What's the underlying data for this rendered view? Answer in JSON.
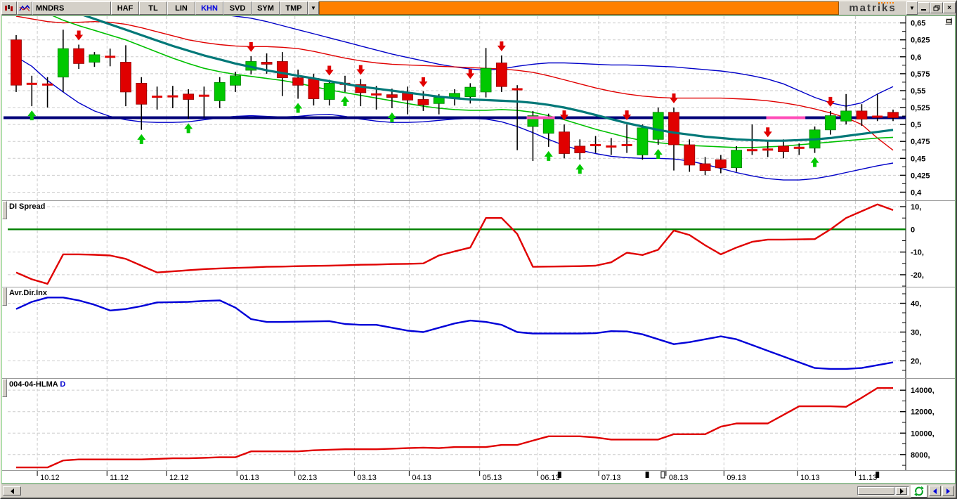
{
  "titlebar": {
    "tabs": [
      {
        "label": "MNDRS"
      },
      {
        "label": "HAF"
      },
      {
        "label": "TL"
      },
      {
        "label": "LIN"
      },
      {
        "label": "KHN"
      },
      {
        "label": "SVD"
      },
      {
        "label": "SYM"
      },
      {
        "label": "TMP"
      }
    ],
    "khn_color": "#0000e0",
    "accent_orange": "#ff8000",
    "logo": "matriks"
  },
  "chart_data": [
    {
      "type": "candlestick",
      "panel": "price",
      "ylim": [
        0.388,
        0.66
      ],
      "yaxis": {
        "values": [
          0.65,
          0.625,
          0.6,
          0.575,
          0.55,
          0.525,
          0.5,
          0.475,
          0.45,
          0.425,
          0.4
        ],
        "labels": [
          "0,65",
          "0,625",
          "0,6",
          "0,575",
          "0,55",
          "0,525",
          "0,5",
          "0,475",
          "0,45",
          "0,425",
          "0,4"
        ]
      },
      "colors": {
        "up": "#00c800",
        "down": "#e00000",
        "up_edge": "#008000",
        "down_edge": "#900000",
        "wick": "#000000",
        "teal": "#007878",
        "ema": "#00c000",
        "band_red": "#e00000",
        "band_blue": "#0000c8",
        "magenta": "#ff4db8"
      },
      "candles": [
        [
          0.625,
          0.632,
          0.548,
          0.558
        ],
        [
          0.561,
          0.572,
          0.527,
          0.559
        ],
        [
          0.56,
          0.57,
          0.525,
          0.558
        ],
        [
          0.57,
          0.64,
          0.548,
          0.612
        ],
        [
          0.612,
          0.618,
          0.582,
          0.59
        ],
        [
          0.592,
          0.607,
          0.585,
          0.603
        ],
        [
          0.601,
          0.612,
          0.586,
          0.599
        ],
        [
          0.592,
          0.617,
          0.527,
          0.548
        ],
        [
          0.561,
          0.57,
          0.492,
          0.53
        ],
        [
          0.542,
          0.556,
          0.522,
          0.54
        ],
        [
          0.542,
          0.557,
          0.524,
          0.541
        ],
        [
          0.545,
          0.552,
          0.508,
          0.537
        ],
        [
          0.543,
          0.556,
          0.51,
          0.542
        ],
        [
          0.535,
          0.57,
          0.524,
          0.562
        ],
        [
          0.558,
          0.578,
          0.548,
          0.572
        ],
        [
          0.58,
          0.601,
          0.574,
          0.593
        ],
        [
          0.592,
          0.605,
          0.575,
          0.589
        ],
        [
          0.593,
          0.607,
          0.542,
          0.569
        ],
        [
          0.569,
          0.581,
          0.538,
          0.558
        ],
        [
          0.568,
          0.575,
          0.528,
          0.538
        ],
        [
          0.537,
          0.566,
          0.528,
          0.561
        ],
        [
          0.561,
          0.572,
          0.548,
          0.559
        ],
        [
          0.559,
          0.567,
          0.527,
          0.547
        ],
        [
          0.545,
          0.557,
          0.522,
          0.544
        ],
        [
          0.544,
          0.553,
          0.524,
          0.54
        ],
        [
          0.547,
          0.556,
          0.515,
          0.536
        ],
        [
          0.537,
          0.549,
          0.52,
          0.529
        ],
        [
          0.531,
          0.545,
          0.515,
          0.54
        ],
        [
          0.54,
          0.552,
          0.528,
          0.546
        ],
        [
          0.541,
          0.561,
          0.531,
          0.555
        ],
        [
          0.548,
          0.613,
          0.54,
          0.583
        ],
        [
          0.591,
          0.602,
          0.548,
          0.556
        ],
        [
          0.553,
          0.558,
          0.462,
          0.551
        ],
        [
          0.497,
          0.52,
          0.446,
          0.513
        ],
        [
          0.487,
          0.516,
          0.467,
          0.508
        ],
        [
          0.489,
          0.5,
          0.45,
          0.457
        ],
        [
          0.468,
          0.478,
          0.448,
          0.458
        ],
        [
          0.47,
          0.483,
          0.458,
          0.469
        ],
        [
          0.468,
          0.48,
          0.455,
          0.467
        ],
        [
          0.47,
          0.5,
          0.458,
          0.469
        ],
        [
          0.455,
          0.5,
          0.448,
          0.495
        ],
        [
          0.478,
          0.525,
          0.47,
          0.518
        ],
        [
          0.518,
          0.525,
          0.432,
          0.47
        ],
        [
          0.47,
          0.478,
          0.43,
          0.44
        ],
        [
          0.442,
          0.452,
          0.425,
          0.432
        ],
        [
          0.448,
          0.455,
          0.428,
          0.436
        ],
        [
          0.436,
          0.468,
          0.43,
          0.462
        ],
        [
          0.463,
          0.5,
          0.455,
          0.461
        ],
        [
          0.464,
          0.475,
          0.452,
          0.462
        ],
        [
          0.468,
          0.478,
          0.45,
          0.46
        ],
        [
          0.466,
          0.472,
          0.455,
          0.465
        ],
        [
          0.465,
          0.497,
          0.458,
          0.492
        ],
        [
          0.492,
          0.52,
          0.485,
          0.513
        ],
        [
          0.505,
          0.545,
          0.5,
          0.52
        ],
        [
          0.52,
          0.53,
          0.498,
          0.508
        ],
        [
          0.512,
          0.545,
          0.505,
          0.511
        ],
        [
          0.518,
          0.522,
          0.505,
          0.51
        ]
      ],
      "overlays": {
        "ma_teal": [
          0.7,
          0.691,
          0.682,
          0.673,
          0.664,
          0.656,
          0.648,
          0.64,
          0.632,
          0.624,
          0.616,
          0.609,
          0.602,
          0.596,
          0.59,
          0.585,
          0.58,
          0.576,
          0.572,
          0.568,
          0.564,
          0.56,
          0.556,
          0.553,
          0.55,
          0.547,
          0.544,
          0.541,
          0.539,
          0.537,
          0.536,
          0.535,
          0.534,
          0.532,
          0.529,
          0.525,
          0.52,
          0.514,
          0.508,
          0.502,
          0.497,
          0.492,
          0.488,
          0.485,
          0.482,
          0.48,
          0.478,
          0.477,
          0.476,
          0.476,
          0.477,
          0.478,
          0.48,
          0.483,
          0.486,
          0.489,
          0.492
        ],
        "ema_green": [
          0.688,
          0.676,
          0.664,
          0.654,
          0.646,
          0.639,
          0.632,
          0.625,
          0.616,
          0.607,
          0.598,
          0.59,
          0.583,
          0.578,
          0.574,
          0.571,
          0.568,
          0.565,
          0.561,
          0.556,
          0.551,
          0.547,
          0.543,
          0.539,
          0.535,
          0.531,
          0.527,
          0.524,
          0.522,
          0.521,
          0.521,
          0.522,
          0.521,
          0.518,
          0.513,
          0.507,
          0.5,
          0.493,
          0.487,
          0.481,
          0.476,
          0.473,
          0.471,
          0.469,
          0.468,
          0.467,
          0.466,
          0.466,
          0.467,
          0.468,
          0.47,
          0.472,
          0.474,
          0.476,
          0.478,
          0.48,
          0.481
        ],
        "band_red": [
          0.66,
          0.656,
          0.652,
          0.65,
          0.651,
          0.652,
          0.651,
          0.648,
          0.643,
          0.637,
          0.631,
          0.625,
          0.621,
          0.618,
          0.616,
          0.615,
          0.615,
          0.614,
          0.612,
          0.608,
          0.603,
          0.598,
          0.594,
          0.591,
          0.589,
          0.588,
          0.587,
          0.586,
          0.585,
          0.584,
          0.583,
          0.582,
          0.58,
          0.577,
          0.572,
          0.566,
          0.56,
          0.554,
          0.549,
          0.545,
          0.542,
          0.54,
          0.539,
          0.539,
          0.539,
          0.539,
          0.538,
          0.537,
          0.535,
          0.532,
          0.528,
          0.523,
          0.517,
          0.51,
          0.5,
          0.48,
          0.462
        ],
        "band_blue_upper": [
          0.72,
          0.715,
          0.71,
          0.706,
          0.702,
          0.698,
          0.694,
          0.69,
          0.685,
          0.68,
          0.675,
          0.671,
          0.667,
          0.663,
          0.66,
          0.657,
          0.652,
          0.646,
          0.64,
          0.634,
          0.628,
          0.622,
          0.616,
          0.61,
          0.604,
          0.599,
          0.594,
          0.589,
          0.585,
          0.582,
          0.58,
          0.582,
          0.586,
          0.589,
          0.591,
          0.591,
          0.59,
          0.589,
          0.588,
          0.588,
          0.587,
          0.586,
          0.585,
          0.583,
          0.581,
          0.579,
          0.576,
          0.572,
          0.567,
          0.56,
          0.55,
          0.54,
          0.532,
          0.527,
          0.532,
          0.545,
          0.556
        ],
        "band_blue_lower": [
          0.6,
          0.586,
          0.565,
          0.548,
          0.532,
          0.52,
          0.512,
          0.507,
          0.504,
          0.503,
          0.503,
          0.504,
          0.507,
          0.51,
          0.512,
          0.513,
          0.512,
          0.511,
          0.512,
          0.514,
          0.515,
          0.512,
          0.508,
          0.505,
          0.503,
          0.503,
          0.504,
          0.506,
          0.508,
          0.509,
          0.508,
          0.504,
          0.497,
          0.488,
          0.478,
          0.469,
          0.462,
          0.457,
          0.453,
          0.451,
          0.45,
          0.45,
          0.449,
          0.446,
          0.441,
          0.435,
          0.429,
          0.424,
          0.42,
          0.418,
          0.418,
          0.42,
          0.424,
          0.429,
          0.434,
          0.439,
          0.443
        ]
      },
      "hline": {
        "value": 0.51,
        "color": "#000078",
        "width": 4,
        "highlight_segments": [
          [
            32.6,
            34.4
          ],
          [
            47.9,
            50.4
          ]
        ]
      },
      "signals": {
        "down": [
          4,
          15,
          20,
          22,
          26,
          29,
          31,
          35,
          39,
          42,
          48,
          52
        ],
        "up": [
          1,
          8,
          11,
          18,
          21,
          24,
          34,
          36,
          41,
          51
        ]
      }
    },
    {
      "type": "line",
      "panel": "di",
      "title": "DI Spread",
      "ylim": [
        -25.6,
        12.5
      ],
      "color": "#e00000",
      "yaxis": {
        "values": [
          10,
          0,
          -10,
          -20
        ],
        "labels": [
          "10,",
          "0",
          "-10,",
          "-20,"
        ],
        "minor": [
          5,
          -5,
          -15,
          -25
        ]
      },
      "zero_line": {
        "value": 0,
        "color": "#008000"
      },
      "values": [
        -19,
        -22,
        -24,
        -11,
        -11,
        -11.2,
        -11.5,
        -13,
        -16,
        -19,
        -18.5,
        -18,
        -17.5,
        -17.2,
        -17,
        -16.8,
        -16.5,
        -16.4,
        -16.2,
        -16.1,
        -16,
        -15.8,
        -15.6,
        -15.5,
        -15.3,
        -15.2,
        -15,
        -11.5,
        -9.7,
        -8,
        5,
        5,
        -2,
        -16.5,
        -16.4,
        -16.3,
        -16.2,
        -16,
        -14.5,
        -10.3,
        -11.3,
        -9,
        -0.5,
        -2.5,
        -7,
        -11,
        -8,
        -5.5,
        -4.5,
        -4.5,
        -4.4,
        -4.3,
        0,
        5,
        8,
        11,
        8.5
      ]
    },
    {
      "type": "line",
      "panel": "adx",
      "title": "Avr.Dir.Inx",
      "ylim": [
        13.75,
        45.5
      ],
      "color": "#0000d8",
      "yaxis": {
        "values": [
          40,
          30,
          20
        ],
        "labels": [
          "40,",
          "30,",
          "20,"
        ],
        "minor": [
          43.3,
          36.7,
          33.3,
          26.7,
          23.3,
          16.7
        ]
      },
      "values": [
        38,
        40.5,
        42,
        42,
        41,
        39.5,
        37.5,
        38,
        39,
        40.3,
        40.4,
        40.5,
        40.8,
        41,
        38.5,
        34.5,
        33.5,
        33.5,
        33.6,
        33.7,
        33.8,
        32.8,
        32.5,
        32.5,
        31.5,
        30.5,
        30,
        31.5,
        33,
        34,
        33.5,
        32.5,
        30,
        29.5,
        29.5,
        29.5,
        29.5,
        29.6,
        30.3,
        30.2,
        29.2,
        27.5,
        25.8,
        26.5,
        27.5,
        28.5,
        27.5,
        25.5,
        23.5,
        21.5,
        19.5,
        17.5,
        17.2,
        17.2,
        17.5,
        18.5,
        19.5
      ]
    },
    {
      "type": "line",
      "panel": "hlma",
      "title_main": "004-04-HLMA",
      "title_suffix": "D",
      "ylim": [
        6480,
        15060
      ],
      "color": "#e00000",
      "yaxis": {
        "values": [
          14000,
          12000,
          10000,
          8000
        ],
        "labels": [
          "14000,",
          "12000,",
          "10000,",
          "8000,"
        ],
        "minor": [
          15000,
          13000,
          11000,
          9000,
          7000
        ]
      },
      "values": [
        6800,
        6800,
        6800,
        7450,
        7550,
        7550,
        7550,
        7550,
        7550,
        7600,
        7650,
        7650,
        7700,
        7750,
        7750,
        8300,
        8300,
        8300,
        8300,
        8400,
        8450,
        8500,
        8500,
        8500,
        8550,
        8600,
        8650,
        8600,
        8700,
        8700,
        8700,
        8900,
        8900,
        9300,
        9700,
        9700,
        9700,
        9600,
        9400,
        9400,
        9400,
        9400,
        9900,
        9900,
        9900,
        10600,
        10900,
        10900,
        10900,
        11700,
        12500,
        12500,
        12500,
        12450,
        13300,
        14200,
        14200
      ]
    }
  ],
  "xaxis": {
    "n_weeks": 57,
    "ticks": [
      {
        "label": "10.12",
        "week": 1.35
      },
      {
        "label": "11.12",
        "week": 5.8
      },
      {
        "label": "12.12",
        "week": 9.6
      },
      {
        "label": "01.13",
        "week": 14.1
      },
      {
        "label": "02.13",
        "week": 17.8
      },
      {
        "label": "03.13",
        "week": 21.6
      },
      {
        "label": "04.13",
        "week": 25.1
      },
      {
        "label": "05.13",
        "week": 29.6
      },
      {
        "label": "06.13",
        "week": 33.3
      },
      {
        "label": "07.13",
        "week": 37.2
      },
      {
        "label": "08.13",
        "week": 41.5
      },
      {
        "label": "09.13",
        "week": 45.2
      },
      {
        "label": "10.13",
        "week": 49.9
      },
      {
        "label": "11.13",
        "week": 53.6
      }
    ],
    "markers": [
      {
        "week": 34.7,
        "filled": true
      },
      {
        "week": 40.3,
        "filled": true
      },
      {
        "week": 41.3,
        "filled": false
      },
      {
        "week": 55.0,
        "filled": true
      }
    ]
  }
}
